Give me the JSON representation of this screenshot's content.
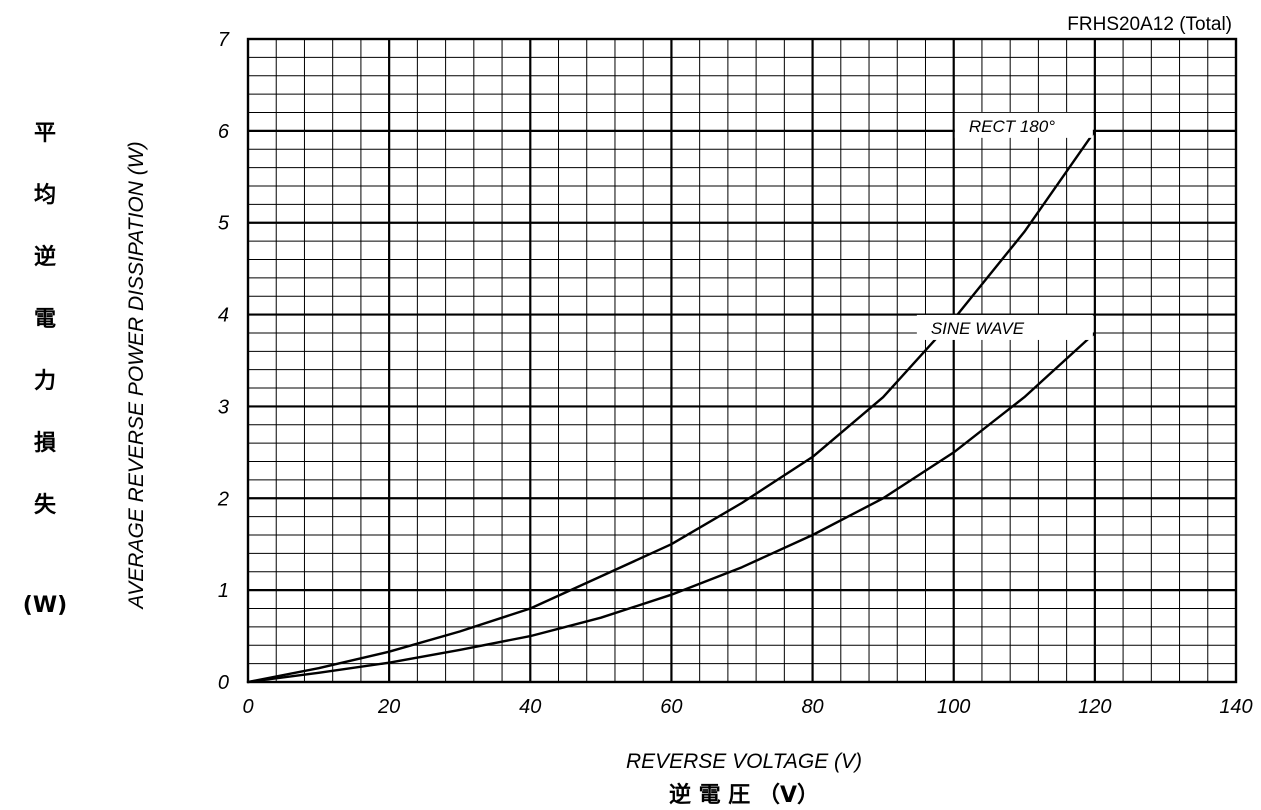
{
  "chart_data": {
    "type": "line",
    "title": "FRHS20A12 (Total)",
    "xlabel": "REVERSE VOLTAGE (V)",
    "xlabel_jp": "逆 電 圧 （V）",
    "ylabel": "AVERAGE REVERSE POWER DISSIPATION (W)",
    "ylabel_jp_chars": [
      "平",
      "均",
      "逆",
      "電",
      "力",
      "損",
      "失"
    ],
    "ylabel_jp_unit": "(W)",
    "xlim": [
      0,
      140
    ],
    "ylim": [
      0,
      7
    ],
    "x_ticks": [
      "0",
      "20",
      "40",
      "60",
      "80",
      "100",
      "120",
      "140"
    ],
    "y_ticks": [
      "0",
      "1",
      "2",
      "3",
      "4",
      "5",
      "6",
      "7"
    ],
    "grid": true,
    "series": [
      {
        "name": "RECT 180°",
        "x": [
          0,
          10,
          20,
          30,
          40,
          50,
          60,
          70,
          80,
          90,
          100,
          110,
          120
        ],
        "y": [
          0,
          0.15,
          0.33,
          0.55,
          0.8,
          1.15,
          1.5,
          1.95,
          2.45,
          3.1,
          3.95,
          4.9,
          6.0
        ]
      },
      {
        "name": "SINE WAVE",
        "x": [
          0,
          10,
          20,
          30,
          40,
          50,
          60,
          70,
          80,
          90,
          100,
          110,
          120
        ],
        "y": [
          0,
          0.1,
          0.21,
          0.35,
          0.5,
          0.7,
          0.95,
          1.25,
          1.6,
          2.0,
          2.5,
          3.1,
          3.8
        ]
      }
    ]
  }
}
